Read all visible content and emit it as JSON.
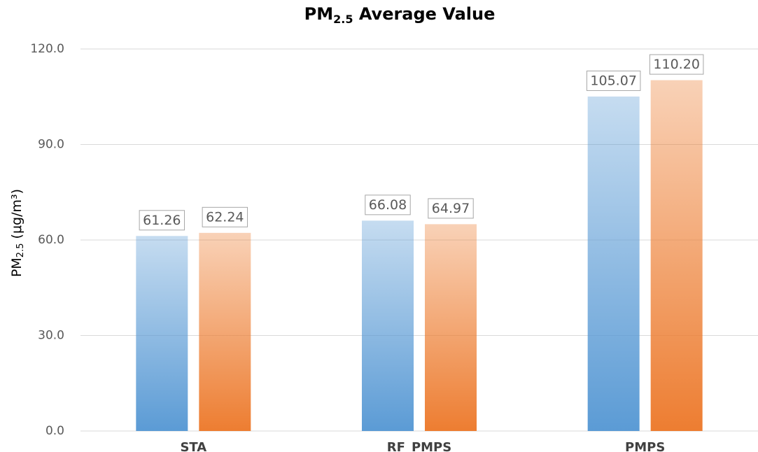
{
  "chart_data": {
    "type": "bar",
    "title": [
      "PM",
      "2.5",
      " Average Value"
    ],
    "y_label": [
      "PM",
      "2.5",
      " (μg/m³)"
    ],
    "categories": [
      "STA",
      "RF_PMPS",
      "PMPS"
    ],
    "series": [
      {
        "color": "#5b9bd5",
        "values": [
          61.26,
          66.08,
          105.07
        ],
        "value_labels": [
          "61.26",
          "66.08",
          "105.07"
        ]
      },
      {
        "color": "#ed7d31",
        "values": [
          62.24,
          64.97,
          110.2
        ],
        "value_labels": [
          "62.24",
          "64.97",
          "110.20"
        ]
      }
    ],
    "ylim": [
      0,
      120
    ],
    "yticks": [
      {
        "value": 0,
        "label": "0.0"
      },
      {
        "value": 30,
        "label": "30.0"
      },
      {
        "value": 60,
        "label": "60.0"
      },
      {
        "value": 90,
        "label": "90.0"
      },
      {
        "value": 120,
        "label": "120.0"
      }
    ],
    "grid": true
  }
}
